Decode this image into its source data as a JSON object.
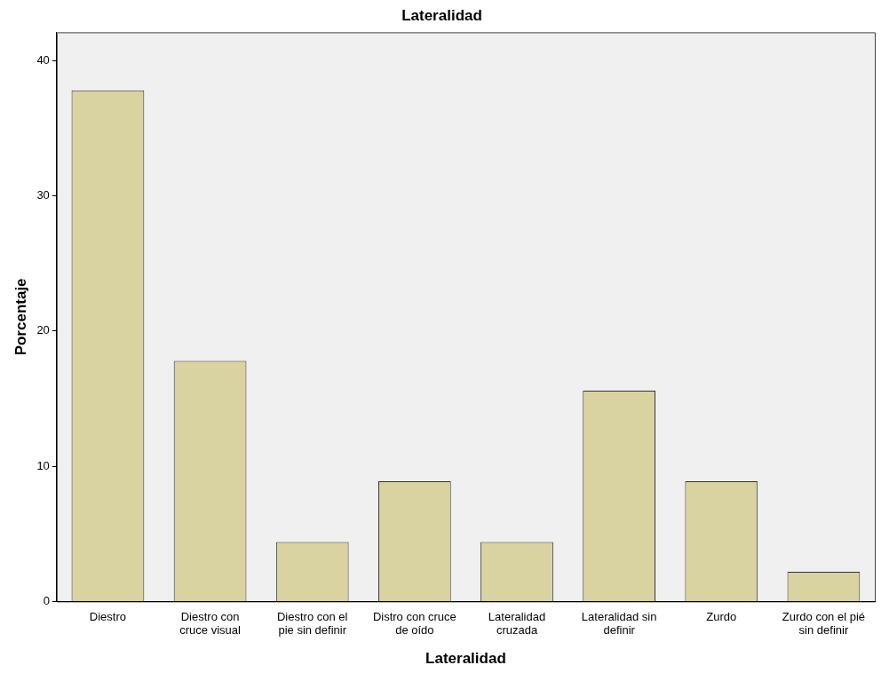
{
  "chart_data": {
    "type": "bar",
    "title": "Lateralidad",
    "xlabel": "Lateralidad",
    "ylabel": "Porcentaje",
    "categories": [
      "Diestro",
      "Diestro con cruce visual",
      "Diestro con el pie sin definir",
      "Distro con cruce de oído",
      "Lateralidad cruzada",
      "Lateralidad sin definir",
      "Zurdo",
      "Zurdo con el pié sin definir"
    ],
    "values": [
      37.8,
      17.8,
      4.4,
      8.9,
      4.4,
      15.6,
      8.9,
      2.2
    ],
    "color": "#d9d3a1",
    "ylim": [
      0,
      42.1
    ],
    "yticks": [
      0,
      10,
      20,
      30,
      40
    ],
    "grid": false,
    "legend": false
  }
}
